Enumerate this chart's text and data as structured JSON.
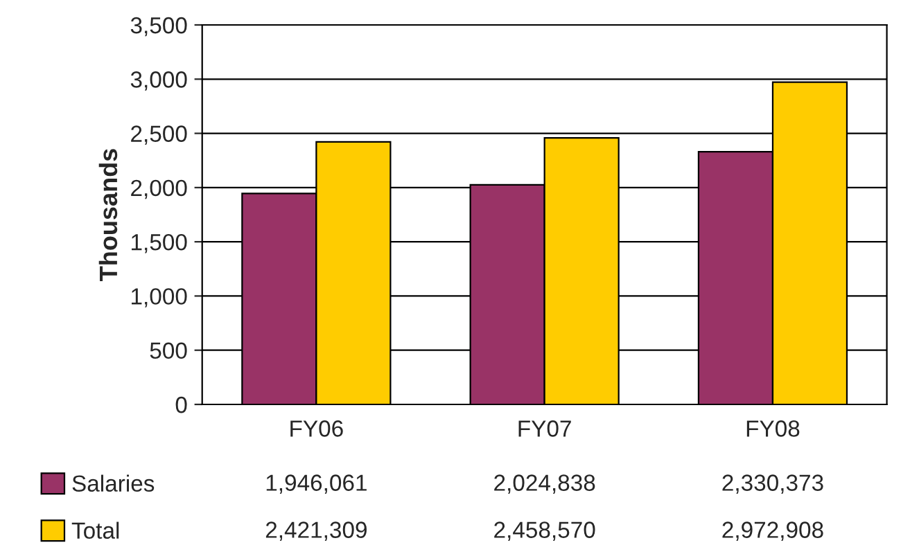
{
  "chart_data": {
    "type": "bar",
    "ylabel": "Thousands",
    "categories": [
      "FY06",
      "FY07",
      "FY08"
    ],
    "series": [
      {
        "name": "Salaries",
        "color": "#993366",
        "values": [
          1946.061,
          2024.838,
          2330.373
        ]
      },
      {
        "name": "Total",
        "color": "#ffcc00",
        "values": [
          2421.309,
          2458.57,
          2972.908
        ]
      }
    ],
    "annotations": [
      "1,946,061",
      "2,024,838",
      "2,330,373",
      "2,421,309",
      "2,458,570",
      "2,972,908"
    ],
    "ylim": [
      0,
      3500
    ],
    "yticks": [
      0,
      500,
      {
        "value": 1000,
        "label": "1,000"
      },
      {
        "value": 1500,
        "label": "1,500"
      },
      {
        "value": 2000,
        "label": "2,000"
      },
      {
        "value": 2500,
        "label": "2,500"
      },
      {
        "value": 3000,
        "label": "3,000"
      },
      {
        "value": 3500,
        "label": "3,500"
      }
    ],
    "grid": "y",
    "legend": "bottom"
  }
}
